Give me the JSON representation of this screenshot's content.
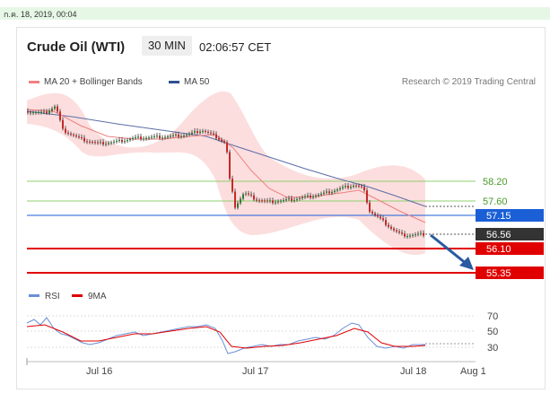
{
  "timestamp": "ก.ค. 18, 2019, 00:04",
  "header": {
    "title": "Crude Oil (WTI)",
    "timeframe": "30 MIN",
    "clock": "02:06:57 CET"
  },
  "legend": {
    "ma20_label": "MA 20 + Bollinger Bands",
    "ma50_label": "MA 50",
    "credit": "Research © 2019 Trading Central"
  },
  "price_levels": [
    {
      "value": "58.20",
      "style": "green-text"
    },
    {
      "value": "57.60",
      "style": "green-text"
    },
    {
      "value": "57.15",
      "style": "blue-box"
    },
    {
      "value": "56.56",
      "style": "dark-box"
    },
    {
      "value": "56.10",
      "style": "red-box"
    },
    {
      "value": "55.35",
      "style": "red-box"
    }
  ],
  "rsi": {
    "rsi_label": "RSI",
    "ma_label": "9MA",
    "ticks": [
      "70",
      "50",
      "30"
    ]
  },
  "x_axis": [
    "Jul 16",
    "Jul 17",
    "Jul 18",
    "Aug 1"
  ],
  "colors": {
    "ma20": "#f08080",
    "ma50": "#2f4f8f",
    "support_red": "#e00000",
    "resistance_blue": "#1a5fd6",
    "green_line": "#8fcf6f",
    "arrow": "#2a5aa0",
    "bollinger_fill": "#fbd3d3"
  }
}
